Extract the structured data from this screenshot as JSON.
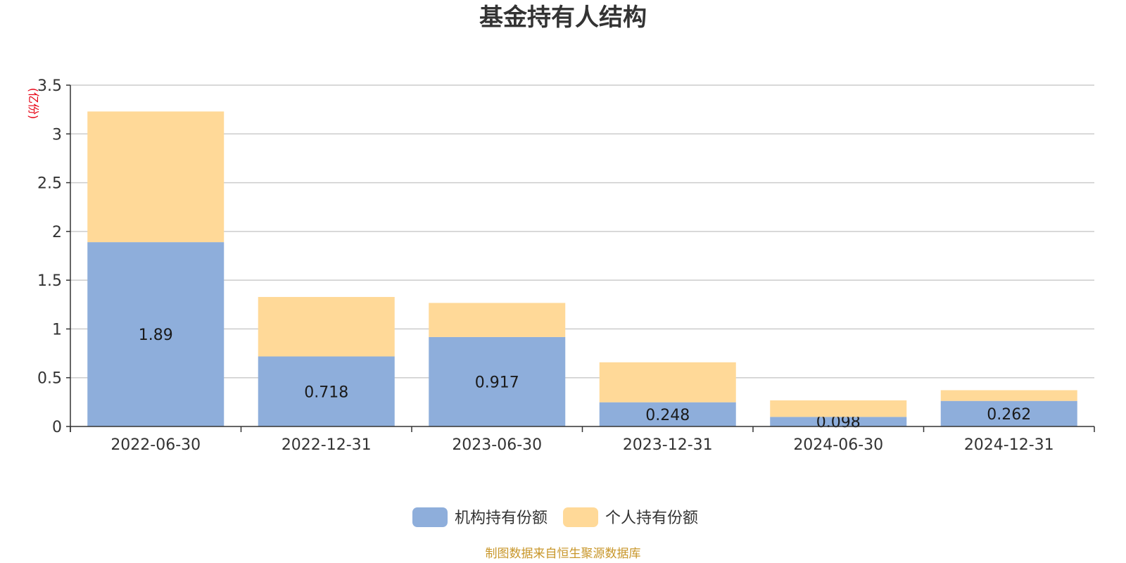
{
  "chart_data": {
    "type": "bar",
    "stacked": true,
    "title": "基金持有人结构",
    "unit_label": "(亿份)",
    "categories": [
      "2022-06-30",
      "2022-12-31",
      "2023-06-30",
      "2023-12-31",
      "2024-06-30",
      "2024-12-31"
    ],
    "series": [
      {
        "name": "机构持有份额",
        "color": "#8eaedb",
        "values": [
          1.89,
          0.718,
          0.917,
          0.248,
          0.098,
          0.262
        ],
        "labels": [
          "1.89",
          "0.718",
          "0.917",
          "0.248",
          "0.098",
          "0.262"
        ]
      },
      {
        "name": "个人持有份额",
        "color": "#ffd998",
        "values": [
          1.34,
          0.61,
          0.35,
          0.41,
          0.17,
          0.11
        ]
      }
    ],
    "ylim": [
      0,
      3.5
    ],
    "yticks": [
      "0",
      "0.5",
      "1",
      "1.5",
      "2",
      "2.5",
      "3",
      "3.5"
    ],
    "grid": true,
    "legend_position": "bottom-center",
    "source_note": "制图数据来自恒生聚源数据库"
  }
}
